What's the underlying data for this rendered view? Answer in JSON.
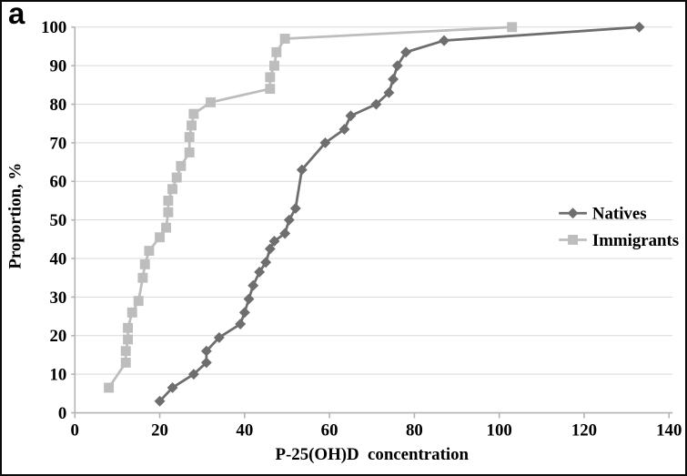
{
  "panel_label": "a",
  "chart_data": {
    "type": "line",
    "title": "",
    "xlabel": "P-25(OH)D  concentration",
    "ylabel": "Proportion, %",
    "xlim": [
      0,
      140
    ],
    "ylim": [
      0,
      100
    ],
    "x_ticks": [
      0,
      20,
      40,
      60,
      80,
      100,
      120,
      140
    ],
    "y_ticks": [
      0,
      10,
      20,
      30,
      40,
      50,
      60,
      70,
      80,
      90,
      100
    ],
    "grid": "horizontal",
    "grid_color": "#d9d9d9",
    "axis_color": "#b3b3b3",
    "text_color": "#000000",
    "legend_position": "inside-right",
    "series": [
      {
        "name": "Natives",
        "color": "#6e6e6e",
        "marker": "diamond",
        "points": [
          [
            20,
            3
          ],
          [
            23,
            6.5
          ],
          [
            28,
            10
          ],
          [
            31,
            13
          ],
          [
            31,
            16
          ],
          [
            34,
            19.5
          ],
          [
            39,
            23
          ],
          [
            40,
            26
          ],
          [
            41,
            29.5
          ],
          [
            42,
            33
          ],
          [
            43.5,
            36.5
          ],
          [
            45,
            39
          ],
          [
            46,
            42.5
          ],
          [
            47,
            44.5
          ],
          [
            49.5,
            46.5
          ],
          [
            50.5,
            50
          ],
          [
            52,
            53
          ],
          [
            53.5,
            63
          ],
          [
            59,
            70
          ],
          [
            63.5,
            73.5
          ],
          [
            65,
            77
          ],
          [
            71,
            80
          ],
          [
            74,
            83
          ],
          [
            75,
            86.5
          ],
          [
            76,
            90
          ],
          [
            78,
            93.5
          ],
          [
            87,
            96.5
          ],
          [
            133,
            100
          ]
        ]
      },
      {
        "name": "Immigrants",
        "color": "#bdbdbd",
        "marker": "square",
        "points": [
          [
            8,
            6.5
          ],
          [
            12,
            13
          ],
          [
            12,
            16
          ],
          [
            12.5,
            19
          ],
          [
            12.5,
            22
          ],
          [
            13.5,
            26
          ],
          [
            15,
            29
          ],
          [
            16,
            35
          ],
          [
            16.5,
            38.5
          ],
          [
            17.5,
            42
          ],
          [
            20,
            45.5
          ],
          [
            21.5,
            48
          ],
          [
            22,
            52
          ],
          [
            22,
            55
          ],
          [
            23,
            58
          ],
          [
            24,
            61
          ],
          [
            25,
            64
          ],
          [
            27,
            67.5
          ],
          [
            27,
            71.5
          ],
          [
            27.5,
            74.5
          ],
          [
            28,
            77.5
          ],
          [
            32,
            80.5
          ],
          [
            46,
            84
          ],
          [
            46,
            87
          ],
          [
            47,
            90
          ],
          [
            47.5,
            93.5
          ],
          [
            49.5,
            97
          ],
          [
            103,
            100
          ]
        ]
      }
    ]
  }
}
